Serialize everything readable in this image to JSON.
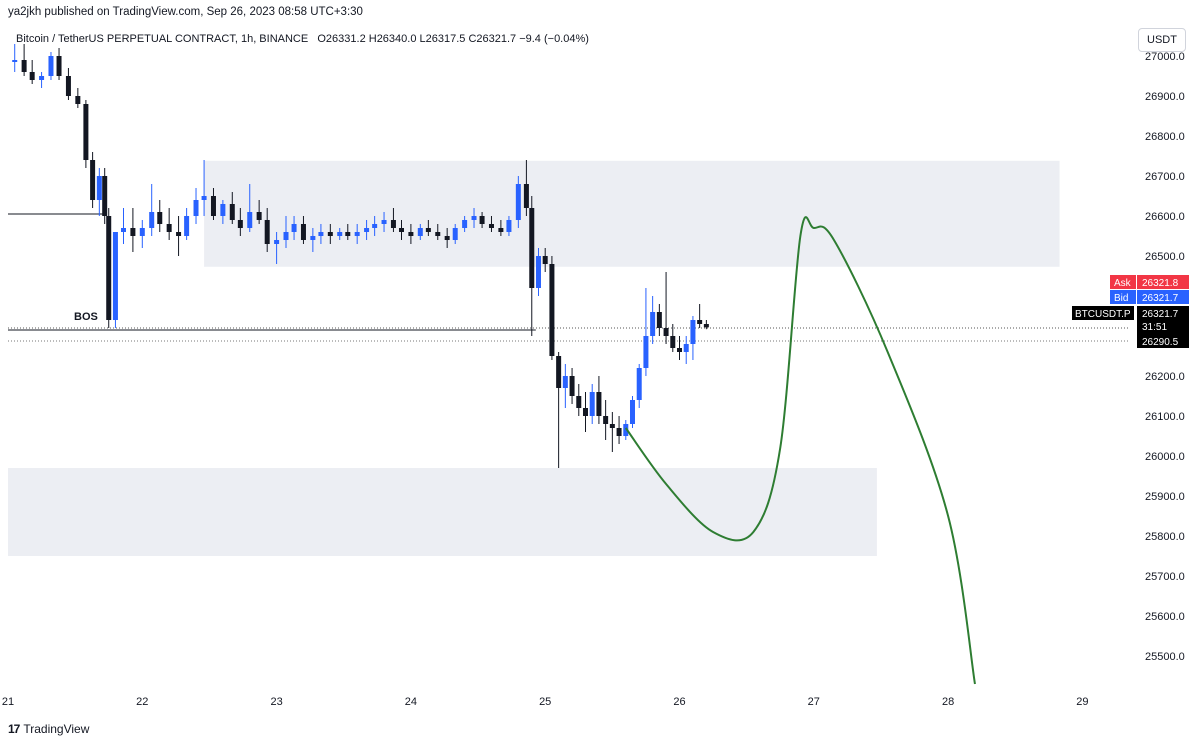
{
  "header": {
    "published": "ya2jkh published on TradingView.com, Sep 26, 2023 08:58 UTC+3:30"
  },
  "symbol": {
    "name": "Bitcoin / TetherUS PERPETUAL CONTRACT, 1h, BINANCE",
    "ohlc": "O26331.2  H26340.0  L26317.5  C26321.7  −9.4 (−0.04%)"
  },
  "currency_button": "USDT",
  "footer": {
    "logo_text": "17",
    "brand": "TradingView"
  },
  "chart_data": {
    "type": "candlestick",
    "x_ticks": [
      "21",
      "22",
      "23",
      "24",
      "25",
      "26",
      "27",
      "28",
      "29"
    ],
    "y_ticks": [
      "27000.0",
      "26900.0",
      "26800.0",
      "26700.0",
      "26600.0",
      "26500.0",
      "26200.0",
      "26100.0",
      "26000.0",
      "25900.0",
      "25800.0",
      "25700.0",
      "25600.0",
      "25500.0"
    ],
    "ylim": [
      25425,
      27020
    ],
    "xlim": [
      21.0,
      29.2
    ],
    "price_labels": {
      "ask_label": "Ask",
      "ask_value": "26321.8",
      "bid_label": "Bid",
      "bid_value": "26321.7",
      "symbol_label": "BTCUSDT.P",
      "last_value": "26321.7",
      "countdown": "31:51",
      "level_value": "26290.5"
    },
    "annotations": {
      "bos_label": "BOS",
      "bos_price": 26315,
      "bos_x": [
        21.0,
        24.93
      ],
      "resistance_price": 26605,
      "resistance_x": [
        21.0,
        21.72
      ]
    },
    "zones": [
      {
        "name": "supply-zone",
        "x": [
          22.46,
          28.83
        ],
        "y": [
          26473,
          26738
        ]
      },
      {
        "name": "demand-zone",
        "x": [
          21.0,
          27.47
        ],
        "y": [
          25750,
          25970
        ]
      }
    ],
    "projection": [
      [
        25.6,
        26070
      ],
      [
        25.9,
        25930
      ],
      [
        26.25,
        25810
      ],
      [
        26.55,
        25810
      ],
      [
        26.75,
        26020
      ],
      [
        26.9,
        26550
      ],
      [
        27.0,
        26570
      ],
      [
        27.15,
        26540
      ],
      [
        27.55,
        26260
      ],
      [
        28.0,
        25850
      ],
      [
        28.2,
        25430
      ]
    ],
    "candles": [
      [
        21.05,
        26985,
        27030,
        26960,
        26990
      ],
      [
        21.12,
        26990,
        27030,
        26950,
        26960
      ],
      [
        21.18,
        26960,
        26990,
        26930,
        26940
      ],
      [
        21.25,
        26940,
        26960,
        26920,
        26950
      ],
      [
        21.32,
        26950,
        27010,
        26940,
        27000
      ],
      [
        21.38,
        27000,
        27020,
        26940,
        26950
      ],
      [
        21.45,
        26950,
        26970,
        26890,
        26900
      ],
      [
        21.52,
        26900,
        26920,
        26870,
        26880
      ],
      [
        21.58,
        26880,
        26890,
        26720,
        26740
      ],
      [
        21.63,
        26740,
        26760,
        26620,
        26640
      ],
      [
        21.68,
        26640,
        26720,
        26600,
        26700
      ],
      [
        21.72,
        26700,
        26720,
        26580,
        26600
      ],
      [
        21.75,
        26600,
        26620,
        26320,
        26340
      ],
      [
        21.8,
        26340,
        26560,
        26320,
        26560
      ],
      [
        21.86,
        26560,
        26620,
        26530,
        26570
      ],
      [
        21.93,
        26570,
        26620,
        26510,
        26550
      ],
      [
        22.0,
        26550,
        26590,
        26520,
        26570
      ],
      [
        22.07,
        26570,
        26680,
        26550,
        26610
      ],
      [
        22.13,
        26610,
        26640,
        26560,
        26580
      ],
      [
        22.2,
        26580,
        26620,
        26540,
        26560
      ],
      [
        22.27,
        26560,
        26600,
        26500,
        26550
      ],
      [
        22.33,
        26550,
        26620,
        26540,
        26600
      ],
      [
        22.4,
        26600,
        26670,
        26580,
        26640
      ],
      [
        22.46,
        26640,
        26740,
        26600,
        26650
      ],
      [
        22.53,
        26650,
        26670,
        26590,
        26600
      ],
      [
        22.6,
        26600,
        26640,
        26580,
        26630
      ],
      [
        22.67,
        26630,
        26660,
        26580,
        26590
      ],
      [
        22.73,
        26590,
        26620,
        26550,
        26570
      ],
      [
        22.8,
        26570,
        26680,
        26560,
        26610
      ],
      [
        22.87,
        26610,
        26640,
        26580,
        26590
      ],
      [
        22.93,
        26590,
        26620,
        26510,
        26530
      ],
      [
        23.0,
        26530,
        26560,
        26480,
        26540
      ],
      [
        23.07,
        26540,
        26600,
        26520,
        26560
      ],
      [
        23.13,
        26560,
        26600,
        26540,
        26580
      ],
      [
        23.2,
        26580,
        26600,
        26530,
        26540
      ],
      [
        23.27,
        26540,
        26570,
        26510,
        26550
      ],
      [
        23.33,
        26550,
        26580,
        26530,
        26560
      ],
      [
        23.4,
        26560,
        26580,
        26530,
        26550
      ],
      [
        23.47,
        26550,
        26570,
        26540,
        26560
      ],
      [
        23.53,
        26560,
        26580,
        26540,
        26550
      ],
      [
        23.6,
        26550,
        26580,
        26530,
        26560
      ],
      [
        23.67,
        26560,
        26590,
        26540,
        26570
      ],
      [
        23.73,
        26570,
        26600,
        26550,
        26580
      ],
      [
        23.8,
        26580,
        26610,
        26560,
        26590
      ],
      [
        23.87,
        26590,
        26620,
        26560,
        26570
      ],
      [
        23.93,
        26570,
        26590,
        26540,
        26560
      ],
      [
        24.0,
        26560,
        26580,
        26530,
        26550
      ],
      [
        24.07,
        26550,
        26580,
        26540,
        26570
      ],
      [
        24.13,
        26570,
        26590,
        26550,
        26560
      ],
      [
        24.2,
        26560,
        26580,
        26540,
        26550
      ],
      [
        24.27,
        26550,
        26570,
        26520,
        26540
      ],
      [
        24.33,
        26540,
        26580,
        26530,
        26570
      ],
      [
        24.4,
        26570,
        26600,
        26560,
        26590
      ],
      [
        24.47,
        26590,
        26620,
        26570,
        26600
      ],
      [
        24.53,
        26600,
        26610,
        26570,
        26580
      ],
      [
        24.6,
        26580,
        26600,
        26560,
        26570
      ],
      [
        24.67,
        26570,
        26590,
        26550,
        26560
      ],
      [
        24.73,
        26560,
        26600,
        26550,
        26590
      ],
      [
        24.8,
        26590,
        26700,
        26570,
        26680
      ],
      [
        24.86,
        26680,
        26740,
        26600,
        26620
      ],
      [
        24.9,
        26620,
        26650,
        26300,
        26420
      ],
      [
        24.95,
        26420,
        26520,
        26400,
        26500
      ],
      [
        25.0,
        26500,
        26520,
        26460,
        26480
      ],
      [
        25.05,
        26480,
        26500,
        26240,
        26250
      ],
      [
        25.1,
        26250,
        26260,
        25970,
        26170
      ],
      [
        25.15,
        26170,
        26230,
        26120,
        26200
      ],
      [
        25.2,
        26200,
        26220,
        26130,
        26150
      ],
      [
        25.25,
        26150,
        26180,
        26100,
        26120
      ],
      [
        25.3,
        26120,
        26160,
        26060,
        26100
      ],
      [
        25.35,
        26100,
        26180,
        26080,
        26160
      ],
      [
        25.4,
        26160,
        26200,
        26080,
        26100
      ],
      [
        25.45,
        26100,
        26140,
        26040,
        26080
      ],
      [
        25.5,
        26080,
        26110,
        26010,
        26070
      ],
      [
        25.55,
        26070,
        26100,
        26030,
        26050
      ],
      [
        25.6,
        26050,
        26090,
        26040,
        26080
      ],
      [
        25.65,
        26080,
        26150,
        26070,
        26140
      ],
      [
        25.7,
        26140,
        26230,
        26120,
        26220
      ],
      [
        25.75,
        26220,
        26420,
        26200,
        26300
      ],
      [
        25.8,
        26300,
        26400,
        26280,
        26360
      ],
      [
        25.85,
        26360,
        26380,
        26300,
        26320
      ],
      [
        25.9,
        26320,
        26460,
        26280,
        26300
      ],
      [
        25.95,
        26300,
        26330,
        26260,
        26270
      ],
      [
        26.0,
        26270,
        26300,
        26240,
        26260
      ],
      [
        26.05,
        26260,
        26300,
        26230,
        26280
      ],
      [
        26.1,
        26280,
        26350,
        26240,
        26340
      ],
      [
        26.15,
        26340,
        26380,
        26320,
        26330
      ],
      [
        26.2,
        26330,
        26340,
        26317,
        26321.7
      ]
    ]
  }
}
